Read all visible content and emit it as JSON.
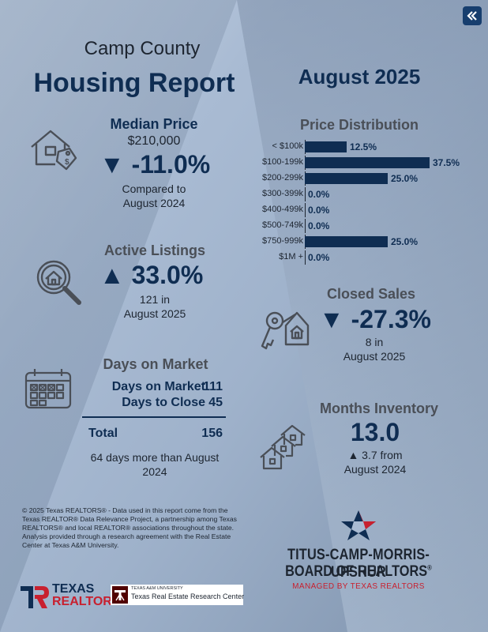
{
  "header": {
    "county": "Camp County",
    "title": "Housing Report",
    "period": "August 2025"
  },
  "median_price": {
    "heading": "Median Price",
    "value": "$210,000",
    "arrow": "▼",
    "change": "-11.0%",
    "compare_line1": "Compared to",
    "compare_line2": "August 2024"
  },
  "active_listings": {
    "heading": "Active Listings",
    "arrow": "▲",
    "change": "33.0%",
    "line1": "121 in",
    "line2": "August 2025"
  },
  "days_on_market": {
    "heading": "Days on Market",
    "rows": [
      {
        "label": "Days on Market",
        "value": "111"
      },
      {
        "label": "Days to Close",
        "value": "45"
      }
    ],
    "total_label": "Total",
    "total_value": "156",
    "note_line1": "64 days more than August",
    "note_line2": "2024"
  },
  "closed_sales": {
    "heading": "Closed Sales",
    "arrow": "▼",
    "change": "-27.3%",
    "line1": "8 in",
    "line2": "August 2025"
  },
  "months_inventory": {
    "heading": "Months Inventory",
    "value": "13.0",
    "change_line1": "▲ 3.7 from",
    "change_line2": "August 2024"
  },
  "chart_data": {
    "type": "bar",
    "orientation": "horizontal",
    "title": "Price Distribution",
    "categories": [
      "< $100k",
      "$100-199k",
      "$200-299k",
      "$300-399k",
      "$400-499k",
      "$500-749k",
      "$750-999k",
      "$1M +"
    ],
    "values": [
      12.5,
      37.5,
      25.0,
      0.0,
      0.0,
      0.0,
      25.0,
      0.0
    ],
    "value_labels": [
      "12.5%",
      "37.5%",
      "25.0%",
      "0.0%",
      "0.0%",
      "0.0%",
      "25.0%",
      "0.0%"
    ],
    "xlim": [
      0,
      37.5
    ],
    "grid": false,
    "colors": {
      "bar": "#0f2d52"
    }
  },
  "footer": {
    "disclaimer": "© 2025 Texas REALTORS® - Data used in this report come from the Texas REALTOR® Data Relevance Project, a partnership among Texas REALTORS® and local REALTOR® associations throughout the state. Analysis provided through a research agreement with the Real Estate Center at Texas A&M University.",
    "board_line1": "TITUS-CAMP-MORRIS-UPSHUR",
    "board_line2": "BOARD OF REALTORS",
    "board_reg": "®",
    "board_sub": "MANAGED BY TEXAS REALTORS",
    "tr_logo_line1": "TEXAS",
    "tr_logo_line2": "REALTORS",
    "tamu_small": "TEXAS A&M UNIVERSITY",
    "tamu_main": "Texas Real Estate Research Center"
  },
  "icons": {
    "back": "double-chevron-left-icon",
    "median": "house-price-tag-icon",
    "listings": "magnifier-house-icon",
    "calendar": "calendar-icon",
    "closed": "key-house-tag-icon",
    "inventory": "houses-stack-icon"
  },
  "colors": {
    "navy": "#0f2d52",
    "gray_text": "#4a4f57",
    "accent_red": "#c8202f"
  }
}
